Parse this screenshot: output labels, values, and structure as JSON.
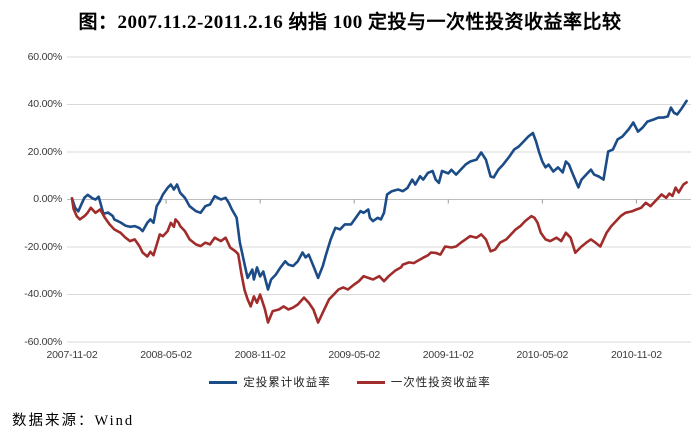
{
  "title": "图：2007.11.2-2011.2.16 纳指 100 定投与一次性投资收益率比较",
  "source_note": "数据来源：Wind",
  "colors": {
    "series_blue": "#1B4C87",
    "series_red": "#A02D2B",
    "grid": "#D9D9D9",
    "axis": "#BDBDBD",
    "tick": "#9A9A9A",
    "label_text": "#3A3A3A"
  },
  "chart_data": {
    "type": "line",
    "title": "图：2007.11.2-2011.2.16 纳指 100 定投与一次性投资收益率比较",
    "xlabel": "",
    "ylabel": "",
    "x_unit": "months since 2007-11-02",
    "xlim": [
      0,
      39.5
    ],
    "ylim": [
      -60,
      60
    ],
    "grid": true,
    "legend_position": "bottom",
    "y_ticks": [
      {
        "v": 60,
        "label": "60.00%"
      },
      {
        "v": 40,
        "label": "40.00%"
      },
      {
        "v": 20,
        "label": "20.00%"
      },
      {
        "v": 0,
        "label": "0.00%"
      },
      {
        "v": -20,
        "label": "-20.00%"
      },
      {
        "v": -40,
        "label": "-40.00%"
      },
      {
        "v": -60,
        "label": "-60.00%"
      }
    ],
    "x_ticks": [
      {
        "t": 0,
        "label": "2007-11-02"
      },
      {
        "t": 6,
        "label": "2008-05-02"
      },
      {
        "t": 12,
        "label": "2008-11-02"
      },
      {
        "t": 18,
        "label": "2009-05-02"
      },
      {
        "t": 24,
        "label": "2009-11-02"
      },
      {
        "t": 30,
        "label": "2010-05-02"
      },
      {
        "t": 36,
        "label": "2010-11-02"
      }
    ],
    "series": [
      {
        "name": "定投累计收益率",
        "color": "#1B4C87",
        "points": [
          [
            0,
            0.5
          ],
          [
            0.2,
            -3.5
          ],
          [
            0.4,
            -5
          ],
          [
            0.6,
            -2
          ],
          [
            0.8,
            0.8
          ],
          [
            1,
            2
          ],
          [
            1.3,
            0.5
          ],
          [
            1.5,
            0
          ],
          [
            1.7,
            1.2
          ],
          [
            2,
            -6
          ],
          [
            2.3,
            -5.5
          ],
          [
            2.6,
            -7
          ],
          [
            2.7,
            -8.4
          ],
          [
            3.1,
            -9.7
          ],
          [
            3.4,
            -11
          ],
          [
            3.7,
            -11.5
          ],
          [
            4,
            -11.2
          ],
          [
            4.3,
            -12
          ],
          [
            4.5,
            -13.3
          ],
          [
            4.8,
            -9.8
          ],
          [
            5,
            -8.4
          ],
          [
            5.2,
            -9.8
          ],
          [
            5.4,
            -2.8
          ],
          [
            5.6,
            -0.7
          ],
          [
            5.8,
            2.1
          ],
          [
            6.1,
            4.9
          ],
          [
            6.3,
            6.3
          ],
          [
            6.5,
            4.2
          ],
          [
            6.7,
            6.3
          ],
          [
            6.9,
            2.8
          ],
          [
            7.2,
            0.7
          ],
          [
            7.5,
            -2.8
          ],
          [
            7.9,
            -4.9
          ],
          [
            8.2,
            -5.6
          ],
          [
            8.5,
            -2.8
          ],
          [
            8.8,
            -2.1
          ],
          [
            9.1,
            1.4
          ],
          [
            9.5,
            0
          ],
          [
            9.8,
            0.7
          ],
          [
            10,
            -1.4
          ],
          [
            10.2,
            -4.2
          ],
          [
            10.5,
            -7.6
          ],
          [
            10.7,
            -18
          ],
          [
            11.1,
            -30
          ],
          [
            11.2,
            -33
          ],
          [
            11.5,
            -29.5
          ],
          [
            11.6,
            -33.7
          ],
          [
            11.8,
            -28.6
          ],
          [
            12,
            -32.4
          ],
          [
            12.2,
            -30.3
          ],
          [
            12.5,
            -37.9
          ],
          [
            12.7,
            -33.7
          ],
          [
            13,
            -31.6
          ],
          [
            13.3,
            -28.6
          ],
          [
            13.6,
            -26
          ],
          [
            13.8,
            -27.4
          ],
          [
            14.1,
            -28
          ],
          [
            14.4,
            -26
          ],
          [
            14.7,
            -22.3
          ],
          [
            14.9,
            -24.4
          ],
          [
            15.1,
            -23.2
          ],
          [
            15.4,
            -28
          ],
          [
            15.7,
            -33
          ],
          [
            16,
            -28
          ],
          [
            16.2,
            -23.2
          ],
          [
            16.5,
            -16.8
          ],
          [
            16.8,
            -11.9
          ],
          [
            17.1,
            -12.6
          ],
          [
            17.4,
            -10.5
          ],
          [
            17.8,
            -10.5
          ],
          [
            18.1,
            -7.7
          ],
          [
            18.4,
            -4.9
          ],
          [
            18.6,
            -5.6
          ],
          [
            18.9,
            -4.2
          ],
          [
            19,
            -7.7
          ],
          [
            19.2,
            -9.1
          ],
          [
            19.5,
            -7.7
          ],
          [
            19.7,
            -8.4
          ],
          [
            19.9,
            -5.6
          ],
          [
            20.1,
            2.1
          ],
          [
            20.4,
            3.5
          ],
          [
            20.8,
            4.2
          ],
          [
            21.1,
            3.5
          ],
          [
            21.4,
            4.9
          ],
          [
            21.7,
            8.4
          ],
          [
            21.9,
            6.3
          ],
          [
            22.2,
            9.8
          ],
          [
            22.4,
            8.4
          ],
          [
            22.7,
            11.2
          ],
          [
            23,
            12
          ],
          [
            23.2,
            8.4
          ],
          [
            23.4,
            7
          ],
          [
            23.6,
            12
          ],
          [
            24,
            11
          ],
          [
            24.2,
            12.5
          ],
          [
            24.5,
            10.5
          ],
          [
            24.8,
            12.6
          ],
          [
            25.1,
            14.7
          ],
          [
            25.4,
            16
          ],
          [
            25.8,
            16.8
          ],
          [
            26.1,
            19.8
          ],
          [
            26.4,
            16.8
          ],
          [
            26.7,
            9.7
          ],
          [
            26.9,
            9.3
          ],
          [
            27.2,
            12.6
          ],
          [
            27.5,
            14.7
          ],
          [
            27.9,
            18.1
          ],
          [
            28.2,
            21
          ],
          [
            28.5,
            22.3
          ],
          [
            28.8,
            24.4
          ],
          [
            29.1,
            26.5
          ],
          [
            29.4,
            28
          ],
          [
            29.6,
            24.4
          ],
          [
            29.8,
            19.8
          ],
          [
            30,
            16
          ],
          [
            30.2,
            13.5
          ],
          [
            30.4,
            14.7
          ],
          [
            30.7,
            11.8
          ],
          [
            31,
            13.5
          ],
          [
            31.3,
            11.4
          ],
          [
            31.5,
            16
          ],
          [
            31.7,
            14.7
          ],
          [
            31.9,
            11.4
          ],
          [
            32.3,
            5.1
          ],
          [
            32.5,
            8.4
          ],
          [
            32.8,
            10.5
          ],
          [
            33.1,
            12.6
          ],
          [
            33.3,
            10.5
          ],
          [
            33.6,
            9.7
          ],
          [
            33.9,
            8.4
          ],
          [
            34.2,
            20.2
          ],
          [
            34.5,
            21
          ],
          [
            34.8,
            25.3
          ],
          [
            35.1,
            26.5
          ],
          [
            35.5,
            29.5
          ],
          [
            35.8,
            32.4
          ],
          [
            36.1,
            28.6
          ],
          [
            36.4,
            30.3
          ],
          [
            36.7,
            32.8
          ],
          [
            37.1,
            33.7
          ],
          [
            37.4,
            34.5
          ],
          [
            37.7,
            34.5
          ],
          [
            38,
            35
          ],
          [
            38.2,
            38.7
          ],
          [
            38.4,
            36.5
          ],
          [
            38.6,
            35.8
          ],
          [
            38.9,
            38.5
          ],
          [
            39.1,
            40.5
          ],
          [
            39.2,
            41.5
          ]
        ]
      },
      {
        "name": "一次性投资收益率",
        "color": "#A02D2B",
        "points": [
          [
            0,
            0.5
          ],
          [
            0.1,
            -4
          ],
          [
            0.3,
            -7
          ],
          [
            0.5,
            -8.4
          ],
          [
            0.8,
            -7
          ],
          [
            1,
            -5.5
          ],
          [
            1.2,
            -3.5
          ],
          [
            1.5,
            -5.6
          ],
          [
            1.8,
            -4.2
          ],
          [
            2.1,
            -7.7
          ],
          [
            2.4,
            -10.5
          ],
          [
            2.7,
            -12.6
          ],
          [
            3.1,
            -14
          ],
          [
            3.4,
            -16
          ],
          [
            3.7,
            -17.5
          ],
          [
            4,
            -16.8
          ],
          [
            4.3,
            -19.6
          ],
          [
            4.5,
            -22.3
          ],
          [
            4.8,
            -24
          ],
          [
            5,
            -22
          ],
          [
            5.2,
            -23.5
          ],
          [
            5.4,
            -19
          ],
          [
            5.6,
            -14.7
          ],
          [
            5.8,
            -15.5
          ],
          [
            6.1,
            -13.3
          ],
          [
            6.3,
            -9.8
          ],
          [
            6.5,
            -11.5
          ],
          [
            6.6,
            -8.4
          ],
          [
            6.8,
            -9.8
          ],
          [
            6.9,
            -11.2
          ],
          [
            7.2,
            -13.3
          ],
          [
            7.5,
            -16.8
          ],
          [
            7.9,
            -18.9
          ],
          [
            8.2,
            -19.6
          ],
          [
            8.5,
            -18.2
          ],
          [
            8.8,
            -18.9
          ],
          [
            9.1,
            -16.1
          ],
          [
            9.5,
            -17.5
          ],
          [
            9.8,
            -16.1
          ],
          [
            10.1,
            -20.3
          ],
          [
            10.4,
            -21.7
          ],
          [
            10.6,
            -23
          ],
          [
            10.8,
            -31
          ],
          [
            11,
            -38
          ],
          [
            11.2,
            -42
          ],
          [
            11.4,
            -45
          ],
          [
            11.6,
            -40.8
          ],
          [
            11.8,
            -43.5
          ],
          [
            12,
            -40
          ],
          [
            12.3,
            -46
          ],
          [
            12.5,
            -51.8
          ],
          [
            12.8,
            -47
          ],
          [
            13.2,
            -46.3
          ],
          [
            13.5,
            -45
          ],
          [
            13.8,
            -46.3
          ],
          [
            14.1,
            -45.5
          ],
          [
            14.4,
            -44.2
          ],
          [
            14.8,
            -41.3
          ],
          [
            15.1,
            -43.4
          ],
          [
            15.4,
            -46.3
          ],
          [
            15.7,
            -51.8
          ],
          [
            16,
            -47.6
          ],
          [
            16.4,
            -42
          ],
          [
            16.7,
            -40
          ],
          [
            17,
            -37.9
          ],
          [
            17.3,
            -37
          ],
          [
            17.6,
            -37.9
          ],
          [
            18,
            -35.8
          ],
          [
            18.3,
            -34.4
          ],
          [
            18.6,
            -32.3
          ],
          [
            18.9,
            -33
          ],
          [
            19.2,
            -33.7
          ],
          [
            19.6,
            -32.3
          ],
          [
            19.9,
            -34.4
          ],
          [
            20.2,
            -32.3
          ],
          [
            20.6,
            -30
          ],
          [
            21,
            -28.5
          ],
          [
            21.1,
            -27.4
          ],
          [
            21.5,
            -26.5
          ],
          [
            21.8,
            -26.8
          ],
          [
            22,
            -26
          ],
          [
            22.4,
            -24.5
          ],
          [
            22.7,
            -23.5
          ],
          [
            22.9,
            -22.3
          ],
          [
            23.2,
            -22.5
          ],
          [
            23.5,
            -23.2
          ],
          [
            23.8,
            -19.8
          ],
          [
            24.2,
            -20.2
          ],
          [
            24.5,
            -19.8
          ],
          [
            24.8,
            -18.2
          ],
          [
            25.1,
            -16.8
          ],
          [
            25.4,
            -15.4
          ],
          [
            25.8,
            -16.1
          ],
          [
            26.1,
            -14.7
          ],
          [
            26.4,
            -16.8
          ],
          [
            26.7,
            -21.8
          ],
          [
            27,
            -21
          ],
          [
            27.3,
            -18.2
          ],
          [
            27.7,
            -16.8
          ],
          [
            28,
            -14.7
          ],
          [
            28.3,
            -12.6
          ],
          [
            28.6,
            -11.2
          ],
          [
            28.9,
            -9.1
          ],
          [
            29.3,
            -7
          ],
          [
            29.5,
            -7.7
          ],
          [
            29.7,
            -9.8
          ],
          [
            29.9,
            -14
          ],
          [
            30.2,
            -16.8
          ],
          [
            30.5,
            -17.5
          ],
          [
            30.9,
            -16.1
          ],
          [
            31.2,
            -17.5
          ],
          [
            31.5,
            -14
          ],
          [
            31.8,
            -16.1
          ],
          [
            32.1,
            -22.4
          ],
          [
            32.5,
            -19.8
          ],
          [
            32.8,
            -18.2
          ],
          [
            33.1,
            -16.8
          ],
          [
            33.4,
            -18.2
          ],
          [
            33.7,
            -19.8
          ],
          [
            34.1,
            -14
          ],
          [
            34.4,
            -11.2
          ],
          [
            34.7,
            -9.1
          ],
          [
            35,
            -7
          ],
          [
            35.3,
            -5.6
          ],
          [
            35.7,
            -5
          ],
          [
            36,
            -4.2
          ],
          [
            36.3,
            -3.5
          ],
          [
            36.6,
            -1.4
          ],
          [
            36.9,
            -2.8
          ],
          [
            37.3,
            0
          ],
          [
            37.6,
            2.1
          ],
          [
            37.9,
            0.7
          ],
          [
            38.1,
            2.5
          ],
          [
            38.3,
            1.5
          ],
          [
            38.5,
            5
          ],
          [
            38.7,
            3
          ],
          [
            39,
            6.3
          ],
          [
            39.2,
            7.2
          ]
        ]
      }
    ]
  }
}
